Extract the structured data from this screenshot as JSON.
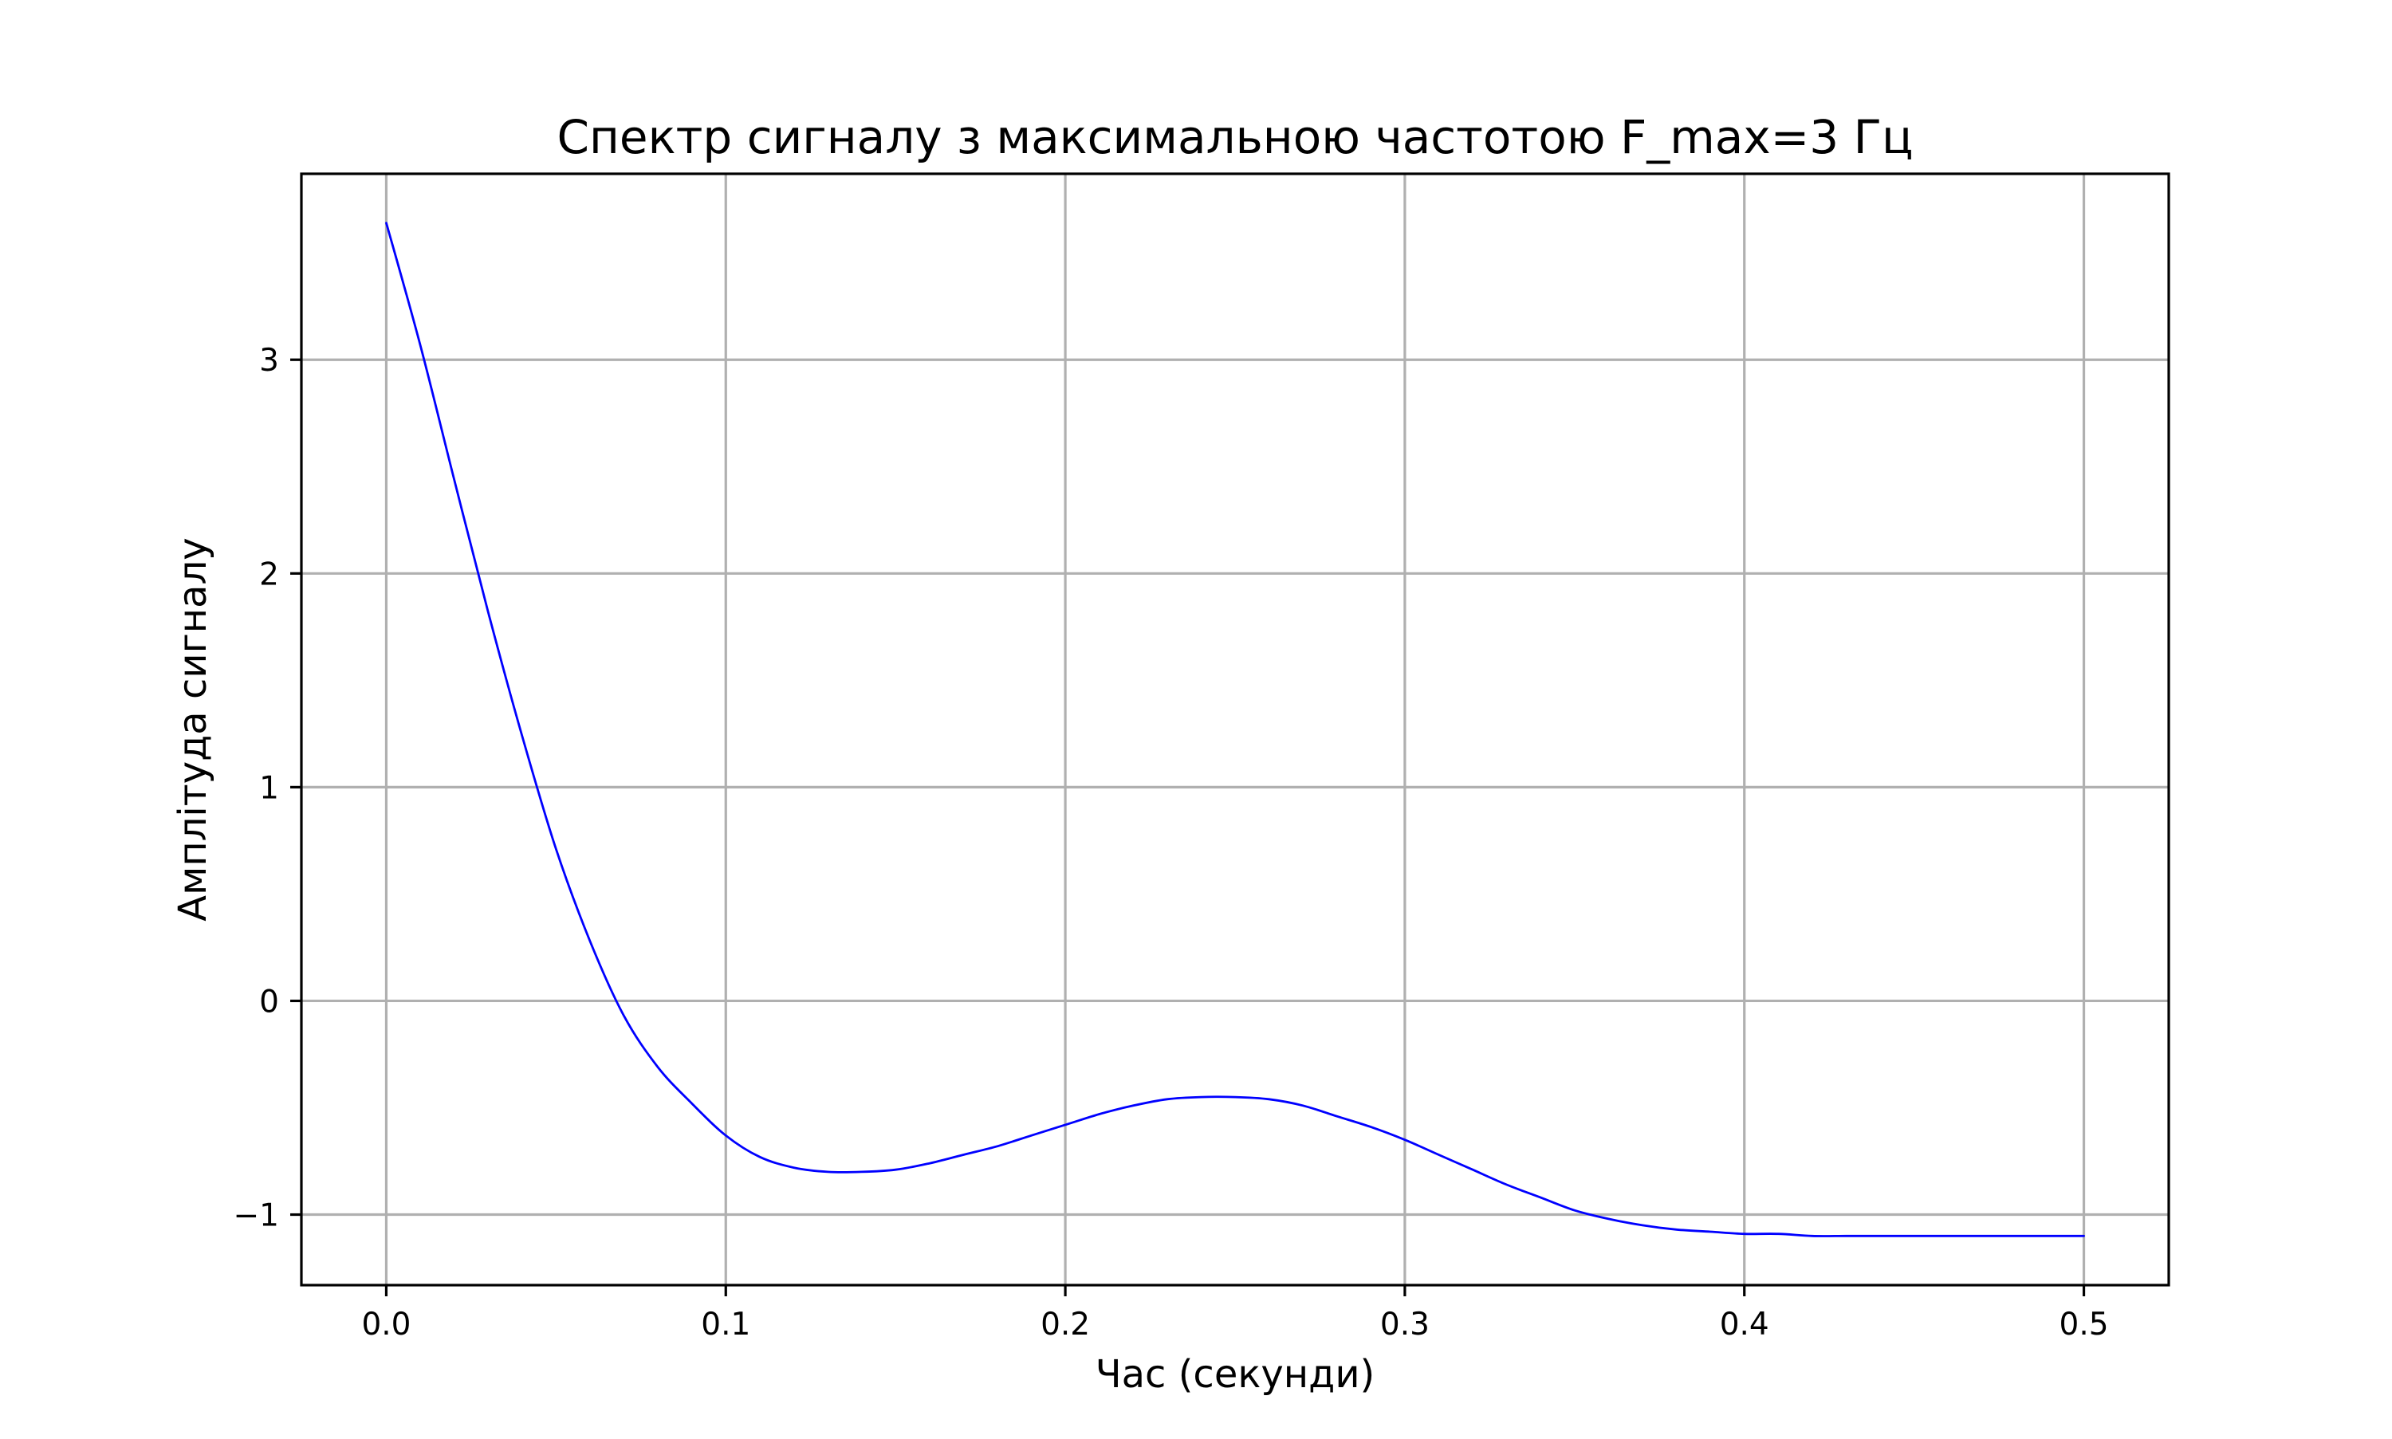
{
  "chart_data": {
    "type": "line",
    "title": "Спектр сигналу з максимальною частотою F_max=3 Гц",
    "xlabel": "Час (секунди)",
    "ylabel": "Амплітуда сигналу",
    "xlim": [
      -0.025,
      0.525
    ],
    "ylim": [
      -1.33,
      3.87
    ],
    "xticks": [
      0.0,
      0.1,
      0.2,
      0.3,
      0.4,
      0.5
    ],
    "xtick_labels": [
      "0.0",
      "0.1",
      "0.2",
      "0.3",
      "0.4",
      "0.5"
    ],
    "yticks": [
      -1,
      0,
      1,
      2,
      3
    ],
    "ytick_labels": [
      "−1",
      "0",
      "1",
      "2",
      "3"
    ],
    "grid": true,
    "legend": "none",
    "series": [
      {
        "color": "#0000ff",
        "x": [
          0.0,
          0.01,
          0.02,
          0.03,
          0.04,
          0.05,
          0.06,
          0.07,
          0.08,
          0.09,
          0.1,
          0.11,
          0.12,
          0.13,
          0.14,
          0.15,
          0.16,
          0.17,
          0.18,
          0.19,
          0.2,
          0.21,
          0.22,
          0.23,
          0.24,
          0.25,
          0.26,
          0.27,
          0.28,
          0.29,
          0.3,
          0.31,
          0.32,
          0.33,
          0.34,
          0.35,
          0.36,
          0.37,
          0.38,
          0.39,
          0.4,
          0.41,
          0.42,
          0.43,
          0.44,
          0.45,
          0.46,
          0.47,
          0.48,
          0.49,
          0.5
        ],
        "y": [
          3.64,
          3.07,
          2.44,
          1.82,
          1.24,
          0.71,
          0.28,
          -0.07,
          -0.31,
          -0.48,
          -0.63,
          -0.73,
          -0.78,
          -0.8,
          -0.8,
          -0.79,
          -0.76,
          -0.72,
          -0.68,
          -0.63,
          -0.58,
          -0.53,
          -0.49,
          -0.46,
          -0.45,
          -0.45,
          -0.46,
          -0.49,
          -0.54,
          -0.59,
          -0.65,
          -0.72,
          -0.79,
          -0.86,
          -0.92,
          -0.98,
          -1.02,
          -1.05,
          -1.07,
          -1.08,
          -1.09,
          -1.09,
          -1.1,
          -1.1,
          -1.1,
          -1.1,
          -1.1,
          -1.1,
          -1.1,
          -1.1,
          -1.1
        ]
      }
    ]
  }
}
